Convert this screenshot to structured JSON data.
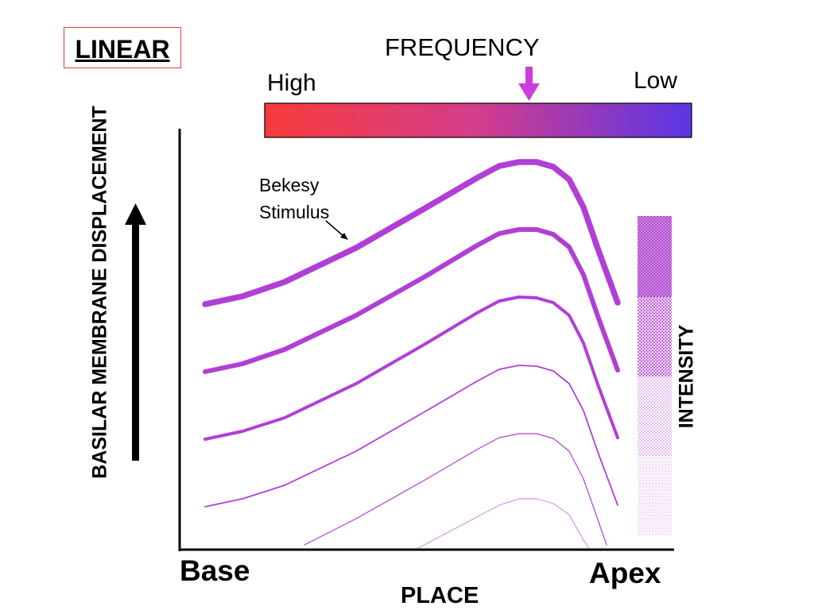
{
  "mode_label": "LINEAR",
  "frequency": {
    "title": "FREQUENCY",
    "high_label": "High",
    "low_label": "Low",
    "gradient_start_color": "#f83a3a",
    "gradient_end_color": "#5a36e6"
  },
  "y_axis_label": "BASILAR MEMBRANE DISPLACEMENT",
  "x_axis": {
    "left_label": "Base",
    "right_label": "Apex",
    "title": "PLACE"
  },
  "stimulus_annotation": {
    "line1": "Bekesy",
    "line2": "Stimulus"
  },
  "intensity_label": "INTENSITY",
  "colors": {
    "curve": "#b13fd6",
    "arrow_accent": "#cc3dde",
    "axis": "#000000"
  }
}
